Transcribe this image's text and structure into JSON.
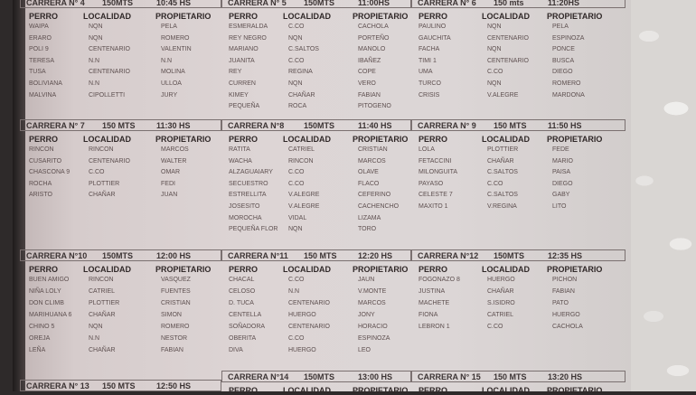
{
  "columns": {
    "perro": "PERRO",
    "localidad": "LOCALIDAD",
    "propietario": "PROPIETARIO"
  },
  "races": [
    {
      "title": "CARRERA N° 4",
      "distance": "150MTS",
      "time": "10:45 HS",
      "rows": [
        [
          "WAIPA",
          "NQN",
          "PELA"
        ],
        [
          "ERARO",
          "NQN",
          "ROMERO"
        ],
        [
          "POLI 9",
          "CENTENARIO",
          "VALENTIN"
        ],
        [
          "TERESA",
          "N.N",
          "N.N"
        ],
        [
          "TUSA",
          "CENTENARIO",
          "MOLINA"
        ],
        [
          "BOLIVIANA",
          "N.N",
          "ULLOA"
        ],
        [
          "MALVINA",
          "CIPOLLETTI",
          "JURY"
        ]
      ]
    },
    {
      "title": "CARRERA N° 5",
      "distance": "150MTS",
      "time": "11:00HS",
      "rows": [
        [
          "ESMERALDA",
          "C.CO",
          "CACHOLA"
        ],
        [
          "REY NEGRO",
          "NQN",
          "PORTEÑO"
        ],
        [
          "MARIANO",
          "C.SALTOS",
          "MANOLO"
        ],
        [
          "JUANITA",
          "C.CO",
          "IBAÑEZ"
        ],
        [
          "REY",
          "REGINA",
          "COPE"
        ],
        [
          "CURREN",
          "NQN",
          "VERO"
        ],
        [
          "KIMEY",
          "CHAÑAR",
          "FABIAN"
        ],
        [
          "PEQUEÑA",
          "ROCA",
          "PITOGENO"
        ]
      ]
    },
    {
      "title": "CARRERA N° 6",
      "distance": "150 mts",
      "time": "11:20HS",
      "rows": [
        [
          "PAULINO",
          "NQN",
          "PELA"
        ],
        [
          "GAUCHITA",
          "CENTENARIO",
          "ESPINOZA"
        ],
        [
          "FACHA",
          "NQN",
          "PONCE"
        ],
        [
          "TIMI 1",
          "CENTENARIO",
          "BUSCA"
        ],
        [
          "UMA",
          "C.CO",
          "DIEGO"
        ],
        [
          "TURCO",
          "NQN",
          "ROMERO"
        ],
        [
          "CRISIS",
          "V.ALEGRE",
          "MARDONA"
        ]
      ]
    },
    {
      "title": "CARRERA N° 7",
      "distance": "150 MTS",
      "time": "11:30 HS",
      "rows": [
        [
          "RINCON",
          "RINCON",
          "MARCOS"
        ],
        [
          "CUSARITO",
          "CENTENARIO",
          "WALTER"
        ],
        [
          "CHASCONA 9",
          "C.CO",
          "OMAR"
        ],
        [
          "ROCHA",
          "PLOTTIER",
          "FEDI"
        ],
        [
          "ARISTO",
          "CHAÑAR",
          "JUAN"
        ]
      ]
    },
    {
      "title": "CARRERA N°8",
      "distance": "150MTS",
      "time": "11:40 HS",
      "rows": [
        [
          "RATITA",
          "CATRIEL",
          "CRISTIAN"
        ],
        [
          "WACHA",
          "RINCON",
          "MARCOS"
        ],
        [
          "ALZAGUAIARY",
          "C.CO",
          "OLAVE"
        ],
        [
          "SECUESTRO",
          "C.CO",
          "FLACO"
        ],
        [
          "ESTRELLITA",
          "V.ALEGRE",
          "CEFERINO"
        ],
        [
          "JOSESITO",
          "V.ALEGRE",
          "CACHENCHO"
        ],
        [
          "MOROCHA",
          "VIDAL",
          "LIZAMA"
        ],
        [
          "PEQUEÑA FLOR",
          "NQN",
          "TORO"
        ]
      ]
    },
    {
      "title": "CARRERA N° 9",
      "distance": "150 MTS",
      "time": "11:50 HS",
      "rows": [
        [
          "LOLA",
          "PLOTTIER",
          "FEDE"
        ],
        [
          "FETACCINI",
          "CHAÑAR",
          "MARIO"
        ],
        [
          "MILONGUITA",
          "C.SALTOS",
          "PAISA"
        ],
        [
          "PAYASO",
          "C.CO",
          "DIEGO"
        ],
        [
          "CELESTE 7",
          "C.SALTOS",
          "GABY"
        ],
        [
          "MAXITO 1",
          "V.REGINA",
          "LITO"
        ]
      ]
    },
    {
      "title": "CARRERA N°10",
      "distance": "150MTS",
      "time": "12:00 HS",
      "rows": [
        [
          "BUEN AMIGO",
          "RINCON",
          "VASQUEZ"
        ],
        [
          "NIÑA LOLY",
          "CATRIEL",
          "FUENTES"
        ],
        [
          "DON CLIMB",
          "PLOTTIER",
          "CRISTIAN"
        ],
        [
          "MARIHUANA 6",
          "CHAÑAR",
          "SIMON"
        ],
        [
          "CHINO 5",
          "NQN",
          "ROMERO"
        ],
        [
          "OREJA",
          "N.N",
          "NESTOR"
        ],
        [
          "LEÑA",
          "CHAÑAR",
          "FABIAN"
        ]
      ]
    },
    {
      "title": "CARRERA N°11",
      "distance": "150 MTS",
      "time": "12:20 HS",
      "rows": [
        [
          "CHACAL",
          "C.CO",
          "JAUN"
        ],
        [
          "CELOSO",
          "N.N",
          "V.MONTE"
        ],
        [
          "D. TUCA",
          "CENTENARIO",
          "MARCOS"
        ],
        [
          "CENTELLA",
          "HUERGO",
          "JONY"
        ],
        [
          "SOÑADORA",
          "CENTENARIO",
          "HORACIO"
        ],
        [
          "OBERITA",
          "C.CO",
          "ESPINOZA"
        ],
        [
          "DIVA",
          "HUERGO",
          "LEO"
        ]
      ]
    },
    {
      "title": "CARRERA N°12",
      "distance": "150MTS",
      "time": "12:35 HS",
      "rows": [
        [
          "FOGONAZO 8",
          "HUERGO",
          "PICHON"
        ],
        [
          "JUSTINA",
          "CHAÑAR",
          "FABIAN"
        ],
        [
          "MACHETE",
          "S.ISIDRO",
          "PATO"
        ],
        [
          "FIONA",
          "CATRIEL",
          "HUERGO"
        ],
        [
          "LEBRON 1",
          "C.CO",
          "CACHOLA"
        ]
      ]
    },
    {
      "title": "CARRERA N° 13",
      "distance": "150 MTS",
      "time": "12:50 HS",
      "rows": []
    },
    {
      "title": "CARRERA N°14",
      "distance": "150MTS",
      "time": "13:00 HS",
      "rows": []
    },
    {
      "title": "CARRERA N° 15",
      "distance": "150 MTS",
      "time": "13:20 HS",
      "rows": []
    }
  ]
}
